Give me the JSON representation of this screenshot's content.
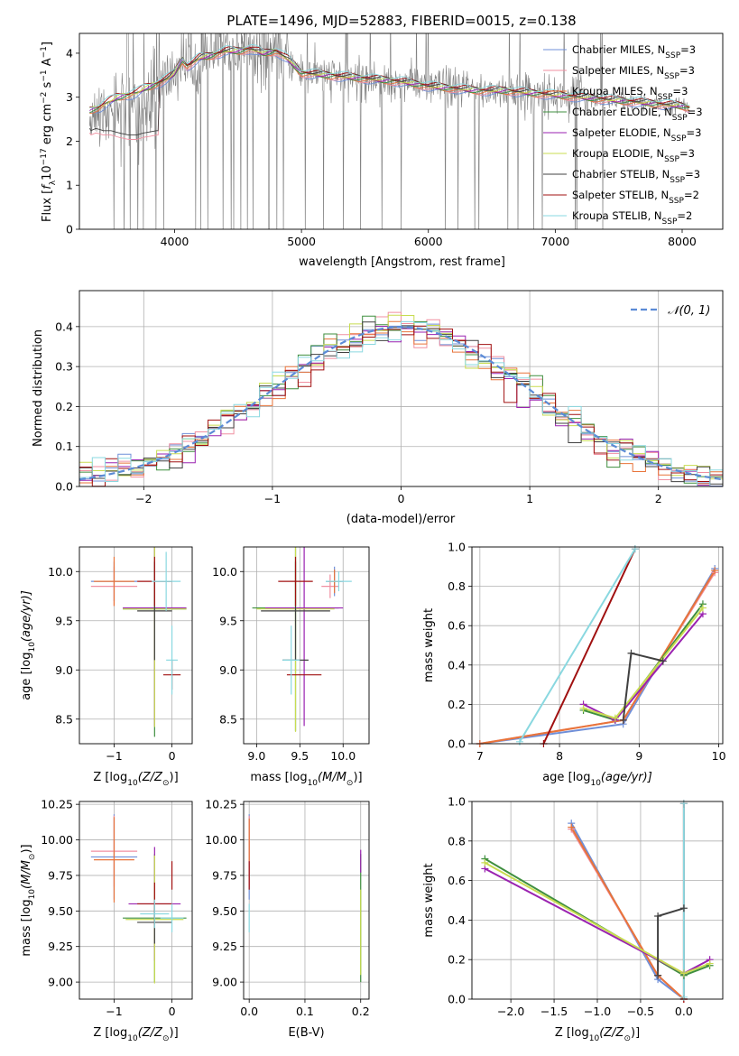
{
  "title": "PLATE=1496, MJD=52883, FIBERID=0015, z=0.138",
  "colors": {
    "Chabrier MILES": "#6f8fd8",
    "Salpeter MILES": "#f08fa0",
    "Kroupa MILES": "#e8743a",
    "Chabrier ELODIE": "#3f8f3f",
    "Salpeter ELODIE": "#9a22b0",
    "Kroupa ELODIE": "#c8dc50",
    "Chabrier STELIB": "#404040",
    "Salpeter STELIB": "#a01010",
    "Kroupa STELIB": "#8ad8e0",
    "data_gray": "#808080",
    "gaussian": "#5b8bd6"
  },
  "chart_data": [
    {
      "id": "spectrum",
      "type": "line",
      "title": "PLATE=1496, MJD=52883, FIBERID=0015, z=0.138",
      "xlabel": "wavelength [Angstrom, rest frame]",
      "ylabel_parts": [
        "Flux [",
        "f",
        "λ",
        "10",
        "−17",
        " erg cm",
        "−2",
        " s",
        "−1",
        " A",
        "−1",
        "]"
      ],
      "xlim": [
        3250,
        8320
      ],
      "ylim": [
        0,
        4.45
      ],
      "xticks": [
        4000,
        5000,
        6000,
        7000,
        8000
      ],
      "yticks": [
        0,
        1,
        2,
        3,
        4
      ],
      "grid": false,
      "legend_position": "top-right",
      "legend": [
        {
          "name": "Chabrier MILES",
          "n": "3"
        },
        {
          "name": "Salpeter MILES",
          "n": "3"
        },
        {
          "name": "Kroupa MILES",
          "n": "3"
        },
        {
          "name": "Chabrier ELODIE",
          "n": "3"
        },
        {
          "name": "Salpeter ELODIE",
          "n": "3"
        },
        {
          "name": "Kroupa ELODIE",
          "n": "3"
        },
        {
          "name": "Chabrier STELIB",
          "n": "3"
        },
        {
          "name": "Salpeter STELIB",
          "n": "2"
        },
        {
          "name": "Kroupa STELIB",
          "n": "2"
        }
      ],
      "legend_label_parts": [
        ", N",
        "SSP",
        "="
      ],
      "model_x": [
        3320,
        3400,
        3480,
        3550,
        3640,
        3700,
        3760,
        3860,
        3960,
        4000,
        4060,
        4100,
        4200,
        4300,
        4400,
        4500,
        4600,
        4700,
        4800,
        4900,
        5000,
        5200,
        5400,
        5600,
        5800,
        6000,
        6200,
        6400,
        6600,
        6800,
        7000,
        7200,
        7400,
        7600,
        7800,
        8000,
        8060
      ],
      "model_y": [
        2.7,
        2.75,
        2.9,
        3.0,
        3.05,
        3.1,
        3.2,
        3.3,
        3.45,
        3.55,
        3.85,
        3.7,
        3.9,
        3.95,
        4.05,
        4.05,
        4.1,
        4.0,
        4.05,
        3.85,
        3.55,
        3.5,
        3.45,
        3.4,
        3.35,
        3.25,
        3.2,
        3.15,
        3.15,
        3.1,
        3.05,
        3.0,
        2.95,
        2.9,
        2.85,
        2.8,
        2.75
      ],
      "lower_x": [
        3320,
        3340,
        3380,
        3440,
        3500,
        3560,
        3640,
        3700,
        3760,
        3860
      ],
      "lower_y": [
        2.3,
        2.2,
        2.25,
        2.2,
        2.2,
        2.15,
        2.1,
        2.1,
        2.15,
        2.2
      ]
    },
    {
      "id": "residuals",
      "type": "line",
      "xlabel": "(data-model)/error",
      "ylabel": "Normed distribution",
      "xlim": [
        -2.5,
        2.5
      ],
      "ylim": [
        0,
        0.49
      ],
      "xticks": [
        -2,
        -1,
        0,
        1,
        2
      ],
      "xticklabels": [
        "−2",
        "−1",
        "0",
        "1",
        "2"
      ],
      "yticks": [
        0.0,
        0.1,
        0.2,
        0.3,
        0.4
      ],
      "yticklabels": [
        "0.0",
        "0.1",
        "0.2",
        "0.3",
        "0.4"
      ],
      "grid": true,
      "legend_position": "top-right",
      "legend": [
        {
          "name": "𝒩(0, 1)"
        }
      ],
      "gaussian_sigma": 1
    },
    {
      "id": "age-vs-Z",
      "type": "scatter",
      "xlabel_parts": [
        "Z [log",
        "10",
        "(Z/Z",
        "⊙",
        ")]"
      ],
      "ylabel_parts": [
        "age  [log",
        "10",
        "(age/yr)]"
      ],
      "xlim": [
        -1.6,
        0.35
      ],
      "ylim": [
        8.25,
        10.25
      ],
      "xticks": [
        -1,
        0
      ],
      "xticklabels": [
        "−1",
        "0"
      ],
      "yticks": [
        8.5,
        9.0,
        9.5,
        10.0
      ],
      "yticklabels": [
        "8.5",
        "9.0",
        "9.5",
        "10.0"
      ],
      "grid": true,
      "points": [
        {
          "s": "Chabrier MILES",
          "x": -1.0,
          "y": 9.9,
          "xe": 0.4,
          "ye": 0.2
        },
        {
          "s": "Salpeter MILES",
          "x": -1.0,
          "y": 9.85,
          "xe": 0.4,
          "ye": 0.2
        },
        {
          "s": "Kroupa MILES",
          "x": -1.0,
          "y": 9.9,
          "xe": 0.35,
          "ye": 0.25
        },
        {
          "s": "Chabrier ELODIE",
          "x": -0.3,
          "y": 9.62,
          "xe": 0.55,
          "ye": 1.3
        },
        {
          "s": "Salpeter ELODIE",
          "x": -0.3,
          "y": 9.63,
          "xe": 0.55,
          "ye": 1.2
        },
        {
          "s": "Kroupa ELODIE",
          "x": -0.3,
          "y": 9.62,
          "xe": 0.55,
          "ye": 1.2
        },
        {
          "s": "Chabrier STELIB",
          "x": -0.3,
          "y": 9.6,
          "xe": 0.3,
          "ye": 0.5
        },
        {
          "s": "Chabrier STELIB",
          "x": -0.3,
          "y": 9.1,
          "xe": 0.0,
          "ye": 0.0
        },
        {
          "s": "Chabrier STELIB",
          "x": -0.3,
          "y": 9.6,
          "xe": 0.0,
          "ye": 0.0
        },
        {
          "s": "Salpeter STELIB",
          "x": -0.3,
          "y": 9.9,
          "xe": 0.3,
          "ye": 0.25
        },
        {
          "s": "Salpeter STELIB",
          "x": 0.0,
          "y": 8.95,
          "xe": 0.15,
          "ye": 0.15
        },
        {
          "s": "Kroupa STELIB",
          "x": -0.1,
          "y": 9.9,
          "xe": 0.25,
          "ye": 0.3
        },
        {
          "s": "Kroupa STELIB",
          "x": 0.0,
          "y": 9.1,
          "xe": 0.1,
          "ye": 0.35
        }
      ]
    },
    {
      "id": "age-vs-mass",
      "type": "scatter",
      "xlabel_parts": [
        "mass [log",
        "10",
        "(M/M",
        "⊙",
        ")]"
      ],
      "xlim": [
        8.85,
        10.3
      ],
      "ylim": [
        8.25,
        10.25
      ],
      "xticks": [
        9.0,
        9.5,
        10.0
      ],
      "xticklabels": [
        "9.0",
        "9.5",
        "10.0"
      ],
      "yticks": [
        8.5,
        9.0,
        9.5,
        10.0
      ],
      "yticklabels": [
        "8.5",
        "9.0",
        "9.5",
        "10.0"
      ],
      "grid": true,
      "points": [
        {
          "s": "Chabrier MILES",
          "x": 9.9,
          "y": 9.9,
          "xe": 0.1,
          "ye": 0.15
        },
        {
          "s": "Salpeter MILES",
          "x": 9.85,
          "y": 9.85,
          "xe": 0.1,
          "ye": 0.12
        },
        {
          "s": "Kroupa MILES",
          "x": 9.9,
          "y": 9.9,
          "xe": 0.08,
          "ye": 0.12
        },
        {
          "s": "Chabrier ELODIE",
          "x": 9.45,
          "y": 9.63,
          "xe": 0.5,
          "ye": 1.25
        },
        {
          "s": "Salpeter ELODIE",
          "x": 9.55,
          "y": 9.63,
          "xe": 0.45,
          "ye": 1.2
        },
        {
          "s": "Kroupa ELODIE",
          "x": 9.45,
          "y": 9.62,
          "xe": 0.45,
          "ye": 1.25
        },
        {
          "s": "Chabrier STELIB",
          "x": 9.45,
          "y": 9.6,
          "xe": 0.4,
          "ye": 0.5
        },
        {
          "s": "Chabrier STELIB",
          "x": 9.45,
          "y": 9.1,
          "xe": 0.15,
          "ye": 0.0
        },
        {
          "s": "Salpeter STELIB",
          "x": 9.45,
          "y": 9.9,
          "xe": 0.2,
          "ye": 0.25
        },
        {
          "s": "Salpeter STELIB",
          "x": 9.55,
          "y": 8.95,
          "xe": 0.2,
          "ye": 0.0
        },
        {
          "s": "Kroupa STELIB",
          "x": 9.95,
          "y": 9.9,
          "xe": 0.15,
          "ye": 0.1
        },
        {
          "s": "Kroupa STELIB",
          "x": 9.4,
          "y": 9.1,
          "xe": 0.1,
          "ye": 0.35
        }
      ]
    },
    {
      "id": "massweight-vs-age",
      "type": "line",
      "xlabel_parts": [
        "age  [log",
        "10",
        "(age/yr)]"
      ],
      "ylabel": "mass weight",
      "xlim": [
        6.9,
        10.05
      ],
      "ylim": [
        0,
        1
      ],
      "xticks": [
        7,
        8,
        9,
        10
      ],
      "xticklabels": [
        "7",
        "8",
        "9",
        "10"
      ],
      "yticks": [
        0.0,
        0.2,
        0.4,
        0.6,
        0.8,
        1.0
      ],
      "yticklabels": [
        "0.0",
        "0.2",
        "0.4",
        "0.6",
        "0.8",
        "1.0"
      ],
      "grid": true,
      "series": [
        {
          "name": "Chabrier MILES",
          "x": [
            7.0,
            8.8,
            9.95
          ],
          "y": [
            0.0,
            0.1,
            0.89
          ]
        },
        {
          "name": "Salpeter MILES",
          "x": [
            7.0,
            8.8,
            9.95
          ],
          "y": [
            0.0,
            0.12,
            0.87
          ]
        },
        {
          "name": "Kroupa MILES",
          "x": [
            7.0,
            8.8,
            9.95
          ],
          "y": [
            0.0,
            0.12,
            0.88
          ]
        },
        {
          "name": "Chabrier ELODIE",
          "x": [
            8.3,
            8.7,
            9.8
          ],
          "y": [
            0.17,
            0.12,
            0.71
          ]
        },
        {
          "name": "Salpeter ELODIE",
          "x": [
            8.3,
            8.7,
            9.8
          ],
          "y": [
            0.2,
            0.12,
            0.66
          ]
        },
        {
          "name": "Kroupa ELODIE",
          "x": [
            8.3,
            8.7,
            9.8
          ],
          "y": [
            0.18,
            0.13,
            0.69
          ]
        },
        {
          "name": "Chabrier STELIB",
          "x": [
            8.8,
            8.9,
            9.3
          ],
          "y": [
            0.12,
            0.46,
            0.42
          ]
        },
        {
          "name": "Salpeter STELIB",
          "x": [
            7.8,
            8.95
          ],
          "y": [
            0.0,
            0.99
          ]
        },
        {
          "name": "Kroupa STELIB",
          "x": [
            7.5,
            8.95
          ],
          "y": [
            0.01,
            0.99
          ]
        }
      ]
    },
    {
      "id": "mass-vs-Z",
      "type": "scatter",
      "xlabel_parts": [
        "Z [log",
        "10",
        "(Z/Z",
        "⊙",
        ")]"
      ],
      "ylabel_parts": [
        "mass [log",
        "10",
        "(M/M",
        "⊙",
        ")]"
      ],
      "xlim": [
        -1.6,
        0.35
      ],
      "ylim": [
        8.88,
        10.27
      ],
      "xticks": [
        -1,
        0
      ],
      "xticklabels": [
        "−1",
        "0"
      ],
      "yticks": [
        9.0,
        9.25,
        9.5,
        9.75,
        10.0,
        10.25
      ],
      "yticklabels": [
        "9.00",
        "9.25",
        "9.50",
        "9.75",
        "10.00",
        "10.25"
      ],
      "grid": true,
      "points": [
        {
          "s": "Chabrier MILES",
          "x": -1.0,
          "y": 9.88,
          "xe": 0.4,
          "ye": 0.3
        },
        {
          "s": "Salpeter MILES",
          "x": -1.0,
          "y": 9.92,
          "xe": 0.4,
          "ye": 0.25
        },
        {
          "s": "Kroupa MILES",
          "x": -1.0,
          "y": 9.86,
          "xe": 0.35,
          "ye": 0.3
        },
        {
          "s": "Chabrier ELODIE",
          "x": -0.3,
          "y": 9.45,
          "xe": 0.55,
          "ye": 0.45
        },
        {
          "s": "Salpeter ELODIE",
          "x": -0.3,
          "y": 9.55,
          "xe": 0.45,
          "ye": 0.4
        },
        {
          "s": "Kroupa ELODIE",
          "x": -0.3,
          "y": 9.44,
          "xe": 0.5,
          "ye": 0.45
        },
        {
          "s": "Chabrier STELIB",
          "x": -0.3,
          "y": 9.42,
          "xe": 0.3,
          "ye": 0.15
        },
        {
          "s": "Salpeter STELIB",
          "x": -0.3,
          "y": 9.55,
          "xe": 0.3,
          "ye": 0.15
        },
        {
          "s": "Salpeter STELIB",
          "x": 0.0,
          "y": 9.75,
          "xe": 0.0,
          "ye": 0.1
        },
        {
          "s": "Kroupa STELIB",
          "x": 0.0,
          "y": 9.45,
          "xe": 0.2,
          "ye": 0.1
        },
        {
          "s": "Kroupa STELIB",
          "x": -0.3,
          "y": 9.48,
          "xe": 0.25,
          "ye": 0.1
        }
      ]
    },
    {
      "id": "mass-vs-EBV",
      "type": "scatter",
      "xlabel": "E(B-V)",
      "xlim": [
        -0.01,
        0.215
      ],
      "ylim": [
        8.88,
        10.27
      ],
      "xticks": [
        0.0,
        0.1,
        0.2
      ],
      "xticklabels": [
        "0.0",
        "0.1",
        "0.2"
      ],
      "yticks": [
        9.0,
        9.25,
        9.5,
        9.75,
        10.0,
        10.25
      ],
      "yticklabels": [
        "9.00",
        "9.25",
        "9.50",
        "9.75",
        "10.00",
        "10.25"
      ],
      "grid": true,
      "points": [
        {
          "s": "Chabrier MILES",
          "x": 0.0,
          "y": 9.88,
          "xe": 0,
          "ye": 0.3
        },
        {
          "s": "Salpeter MILES",
          "x": 0.0,
          "y": 9.92,
          "xe": 0,
          "ye": 0.25
        },
        {
          "s": "Kroupa MILES",
          "x": 0.0,
          "y": 10.0,
          "xe": 0,
          "ye": 0.15
        },
        {
          "s": "Salpeter STELIB",
          "x": 0.0,
          "y": 9.75,
          "xe": 0,
          "ye": 0.1
        },
        {
          "s": "Kroupa STELIB",
          "x": 0.0,
          "y": 9.45,
          "xe": 0,
          "ye": 0.1
        },
        {
          "s": "Chabrier ELODIE",
          "x": 0.2,
          "y": 9.45,
          "xe": 0,
          "ye": 0.45
        },
        {
          "s": "Salpeter ELODIE",
          "x": 0.2,
          "y": 9.85,
          "xe": 0,
          "ye": 0.08
        },
        {
          "s": "Kroupa ELODIE",
          "x": 0.2,
          "y": 9.35,
          "xe": 0,
          "ye": 0.3
        }
      ]
    },
    {
      "id": "massweight-vs-Z",
      "type": "line",
      "xlabel_parts": [
        "Z [log",
        "10",
        "(Z/Z",
        "⊙",
        ")]"
      ],
      "ylabel": "mass weight",
      "xlim": [
        -2.45,
        0.45
      ],
      "ylim": [
        0,
        1
      ],
      "xticks": [
        -2.0,
        -1.5,
        -1.0,
        -0.5,
        0.0
      ],
      "xticklabels": [
        "−2.0",
        "−1.5",
        "−1.0",
        "−0.5",
        "0.0"
      ],
      "yticks": [
        0.0,
        0.2,
        0.4,
        0.6,
        0.8,
        1.0
      ],
      "yticklabels": [
        "0.0",
        "0.2",
        "0.4",
        "0.6",
        "0.8",
        "1.0"
      ],
      "grid": true,
      "series": [
        {
          "name": "Chabrier MILES",
          "x": [
            -1.3,
            -0.3,
            0.0
          ],
          "y": [
            0.89,
            0.1,
            0.0
          ]
        },
        {
          "name": "Salpeter MILES",
          "x": [
            -1.3,
            -0.3,
            0.0
          ],
          "y": [
            0.86,
            0.12,
            0.0
          ]
        },
        {
          "name": "Kroupa MILES",
          "x": [
            -1.3,
            -0.3,
            0.0
          ],
          "y": [
            0.87,
            0.12,
            0.0
          ]
        },
        {
          "name": "Chabrier ELODIE",
          "x": [
            -2.3,
            0.0,
            0.3
          ],
          "y": [
            0.71,
            0.12,
            0.17
          ]
        },
        {
          "name": "Salpeter ELODIE",
          "x": [
            -2.3,
            0.0,
            0.3
          ],
          "y": [
            0.66,
            0.13,
            0.2
          ]
        },
        {
          "name": "Kroupa ELODIE",
          "x": [
            -2.3,
            0.0,
            0.3
          ],
          "y": [
            0.69,
            0.13,
            0.18
          ]
        },
        {
          "name": "Chabrier STELIB",
          "x": [
            -0.3,
            -0.3,
            0.0
          ],
          "y": [
            0.12,
            0.42,
            0.46
          ]
        },
        {
          "name": "Salpeter STELIB",
          "x": [
            0.0,
            0.0
          ],
          "y": [
            0.0,
            0.99
          ]
        },
        {
          "name": "Kroupa STELIB",
          "x": [
            0.0,
            0.0
          ],
          "y": [
            0.01,
            0.99
          ]
        }
      ]
    }
  ]
}
